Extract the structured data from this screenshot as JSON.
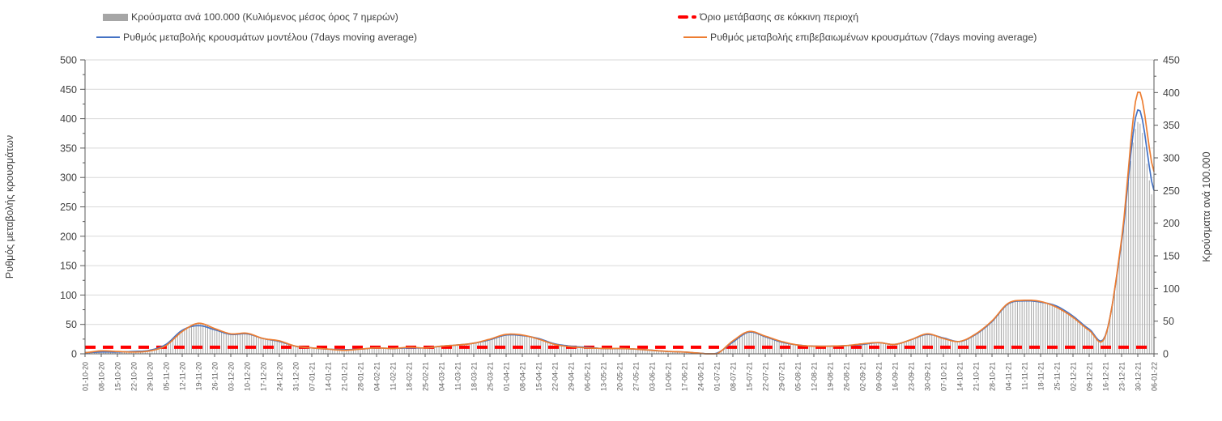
{
  "chart_data": {
    "type": "combo-bar-line",
    "title": "",
    "x_axis": {
      "tick_labels": [
        "01-10-20",
        "08-10-20",
        "15-10-20",
        "22-10-20",
        "29-10-20",
        "05-11-20",
        "12-11-20",
        "19-11-20",
        "26-11-20",
        "03-12-20",
        "10-12-20",
        "17-12-20",
        "24-12-20",
        "31-12-20",
        "07-01-21",
        "14-01-21",
        "21-01-21",
        "28-01-21",
        "04-02-21",
        "11-02-21",
        "18-02-21",
        "25-02-21",
        "04-03-21",
        "11-03-21",
        "18-03-21",
        "25-03-21",
        "01-04-21",
        "08-04-21",
        "15-04-21",
        "22-04-21",
        "29-04-21",
        "06-05-21",
        "13-05-21",
        "20-05-21",
        "27-05-21",
        "03-06-21",
        "10-06-21",
        "17-06-21",
        "24-06-21",
        "01-07-21",
        "08-07-21",
        "15-07-21",
        "22-07-21",
        "29-07-21",
        "05-08-21",
        "12-08-21",
        "19-08-21",
        "26-08-21",
        "02-09-21",
        "09-09-21",
        "16-09-21",
        "23-09-21",
        "30-09-21",
        "07-10-21",
        "14-10-21",
        "21-10-21",
        "28-10-21",
        "04-11-21",
        "11-11-21",
        "18-11-21",
        "25-11-21",
        "02-12-21",
        "09-12-21",
        "16-12-21",
        "23-12-21",
        "30-12-21",
        "06-01-22"
      ],
      "days_per_tick": 7
    },
    "y_left": {
      "title": "Ρυθμός μεταβολής κρουσμάτων",
      "min": 0,
      "max": 500,
      "step": 50,
      "tick_labels": [
        "0",
        "50",
        "100",
        "150",
        "200",
        "250",
        "300",
        "350",
        "400",
        "450",
        "500"
      ]
    },
    "y_right": {
      "title": "Κρούσματα ανά 100.000",
      "min": 0,
      "max": 450,
      "step": 50,
      "tick_labels": [
        "0",
        "50",
        "100",
        "150",
        "200",
        "250",
        "300",
        "350",
        "400",
        "450"
      ]
    },
    "grid": "horizontal",
    "legend_position": "top",
    "threshold": {
      "label": "Όριο μετάβασης σε κόκκινη περιοχή",
      "value": 10,
      "axis": "right",
      "color": "#ff0000",
      "style": "dashed"
    },
    "bars": {
      "name": "Κρούσματα ανά 100.000 (Κυλιόμενος μέσος όρος 7 ημερών)",
      "axis": "right",
      "color": "#ababab",
      "weekly_values": [
        2,
        4,
        4,
        3,
        4,
        13,
        34,
        47,
        39,
        31,
        32,
        23,
        20,
        12,
        9,
        7,
        5,
        7,
        9,
        8,
        10,
        9,
        12,
        14,
        16,
        22,
        30,
        29,
        22,
        14,
        11,
        9,
        8,
        8,
        7,
        5,
        4,
        3,
        1,
        0,
        20,
        34,
        27,
        19,
        14,
        12,
        12,
        13,
        15,
        17,
        14,
        22,
        31,
        23,
        19,
        31,
        50,
        77,
        82,
        80,
        71,
        56,
        36,
        27,
        170,
        355,
        230
      ]
    },
    "series": [
      {
        "name": "Ρυθμός μεταβολής κρουσμάτων μοντέλου (7days moving average)",
        "type": "line",
        "axis": "left",
        "color": "#4472c4",
        "weekly_values": [
          2,
          3,
          3,
          4,
          6,
          16,
          40,
          48,
          41,
          33,
          34,
          26,
          21,
          13,
          10,
          8,
          7,
          8,
          10,
          9,
          10,
          10,
          13,
          15,
          18,
          24,
          32,
          31,
          26,
          17,
          13,
          11,
          9,
          9,
          8,
          6,
          4,
          3,
          1,
          1,
          20,
          37,
          29,
          20,
          15,
          13,
          13,
          14,
          16,
          19,
          16,
          24,
          33,
          27,
          21,
          33,
          55,
          85,
          90,
          88,
          81,
          64,
          42,
          31,
          190,
          415,
          278
        ]
      },
      {
        "name": "Ρυθμός μεταβολής επιβεβαιωμένων κρουσμάτων (7days moving average)",
        "type": "line",
        "axis": "left",
        "color": "#ed7d31",
        "weekly_values": [
          2,
          5,
          4,
          3,
          5,
          14,
          38,
          52,
          43,
          34,
          35,
          26,
          22,
          13,
          10,
          8,
          6,
          8,
          10,
          9,
          11,
          10,
          13,
          15,
          18,
          25,
          33,
          32,
          25,
          16,
          12,
          10,
          9,
          9,
          8,
          6,
          4,
          3,
          1,
          0,
          22,
          38,
          30,
          21,
          15,
          13,
          13,
          14,
          17,
          19,
          16,
          24,
          34,
          26,
          21,
          34,
          56,
          86,
          91,
          89,
          79,
          62,
          40,
          30,
          195,
          445,
          310
        ]
      }
    ],
    "colors": {
      "grid": "#d9d9d9",
      "axis": "#595959",
      "label_text": "#404040",
      "x_label_text": "#595959"
    }
  }
}
